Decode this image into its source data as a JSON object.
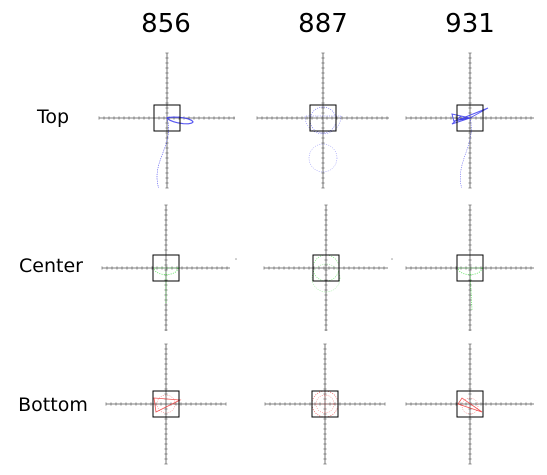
{
  "columns": [
    "856",
    "887",
    "931"
  ],
  "rows": [
    {
      "label": "Top",
      "color": "#3a3aee"
    },
    {
      "label": "Center",
      "color": "#33dd33"
    },
    {
      "label": "Bottom",
      "color": "#ee3333"
    }
  ],
  "axis_color": "#555555",
  "box_color": "#000000"
}
